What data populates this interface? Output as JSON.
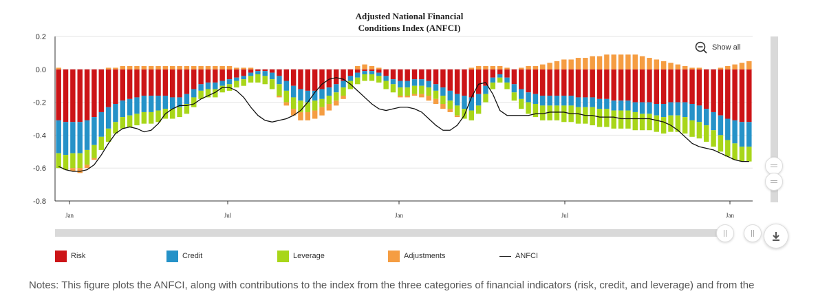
{
  "chart_data": {
    "type": "bar",
    "title": "Adjusted National Financial",
    "subtitle": "Conditions Index (ANFCI)",
    "ylim": [
      -0.8,
      0.2
    ],
    "yticks": [
      "0.2",
      "0.0",
      "-0.2",
      "-0.4",
      "-0.6",
      "-0.8"
    ],
    "xticks": [
      "Jan",
      "Jul",
      "Jan",
      "Jul",
      "Jan"
    ],
    "stacked": true,
    "grid": true,
    "series": [
      {
        "name": "Risk",
        "color": "#cc1417",
        "values": [
          -0.31,
          -0.32,
          -0.32,
          -0.32,
          -0.31,
          -0.29,
          -0.26,
          -0.23,
          -0.21,
          -0.19,
          -0.18,
          -0.17,
          -0.16,
          -0.16,
          -0.16,
          -0.16,
          -0.17,
          -0.17,
          -0.15,
          -0.12,
          -0.09,
          -0.08,
          -0.08,
          -0.07,
          -0.06,
          -0.05,
          -0.04,
          -0.02,
          -0.01,
          -0.01,
          -0.02,
          -0.04,
          -0.07,
          -0.1,
          -0.12,
          -0.13,
          -0.13,
          -0.12,
          -0.11,
          -0.09,
          -0.07,
          -0.04,
          -0.02,
          -0.01,
          -0.01,
          -0.02,
          -0.04,
          -0.06,
          -0.07,
          -0.07,
          -0.06,
          -0.06,
          -0.07,
          -0.09,
          -0.11,
          -0.13,
          -0.15,
          -0.16,
          -0.17,
          -0.15,
          -0.1,
          -0.05,
          -0.03,
          -0.05,
          -0.09,
          -0.12,
          -0.14,
          -0.15,
          -0.16,
          -0.16,
          -0.16,
          -0.16,
          -0.16,
          -0.17,
          -0.17,
          -0.17,
          -0.18,
          -0.18,
          -0.19,
          -0.19,
          -0.19,
          -0.2,
          -0.2,
          -0.2,
          -0.21,
          -0.21,
          -0.2,
          -0.2,
          -0.2,
          -0.21,
          -0.22,
          -0.24,
          -0.26,
          -0.28,
          -0.3,
          -0.31,
          -0.32,
          -0.32
        ]
      },
      {
        "name": "Credit",
        "color": "#2592c8",
        "values": [
          -0.2,
          -0.2,
          -0.19,
          -0.19,
          -0.18,
          -0.17,
          -0.15,
          -0.13,
          -0.11,
          -0.1,
          -0.1,
          -0.1,
          -0.1,
          -0.1,
          -0.09,
          -0.08,
          -0.07,
          -0.06,
          -0.06,
          -0.05,
          -0.04,
          -0.04,
          -0.04,
          -0.03,
          -0.03,
          -0.02,
          -0.02,
          -0.02,
          -0.02,
          -0.03,
          -0.04,
          -0.05,
          -0.06,
          -0.07,
          -0.07,
          -0.07,
          -0.06,
          -0.06,
          -0.05,
          -0.05,
          -0.04,
          -0.03,
          -0.03,
          -0.02,
          -0.02,
          -0.02,
          -0.03,
          -0.03,
          -0.04,
          -0.04,
          -0.04,
          -0.04,
          -0.04,
          -0.04,
          -0.05,
          -0.06,
          -0.07,
          -0.08,
          -0.08,
          -0.07,
          -0.05,
          -0.03,
          -0.02,
          -0.03,
          -0.05,
          -0.06,
          -0.06,
          -0.06,
          -0.06,
          -0.06,
          -0.06,
          -0.06,
          -0.06,
          -0.06,
          -0.06,
          -0.06,
          -0.06,
          -0.06,
          -0.06,
          -0.06,
          -0.06,
          -0.06,
          -0.07,
          -0.07,
          -0.07,
          -0.08,
          -0.08,
          -0.08,
          -0.09,
          -0.1,
          -0.1,
          -0.1,
          -0.11,
          -0.12,
          -0.13,
          -0.14,
          -0.15,
          -0.15
        ]
      },
      {
        "name": "Leverage",
        "color": "#a8d619",
        "values": [
          -0.09,
          -0.09,
          -0.09,
          -0.09,
          -0.09,
          -0.08,
          -0.08,
          -0.08,
          -0.07,
          -0.07,
          -0.07,
          -0.07,
          -0.07,
          -0.07,
          -0.07,
          -0.06,
          -0.06,
          -0.06,
          -0.06,
          -0.06,
          -0.05,
          -0.05,
          -0.05,
          -0.04,
          -0.04,
          -0.04,
          -0.04,
          -0.04,
          -0.05,
          -0.05,
          -0.06,
          -0.07,
          -0.07,
          -0.07,
          -0.07,
          -0.06,
          -0.06,
          -0.05,
          -0.05,
          -0.05,
          -0.05,
          -0.05,
          -0.04,
          -0.04,
          -0.04,
          -0.04,
          -0.05,
          -0.05,
          -0.05,
          -0.05,
          -0.05,
          -0.05,
          -0.05,
          -0.05,
          -0.05,
          -0.05,
          -0.06,
          -0.06,
          -0.06,
          -0.05,
          -0.05,
          -0.04,
          -0.03,
          -0.04,
          -0.05,
          -0.06,
          -0.07,
          -0.08,
          -0.09,
          -0.09,
          -0.09,
          -0.1,
          -0.1,
          -0.1,
          -0.1,
          -0.11,
          -0.11,
          -0.11,
          -0.11,
          -0.11,
          -0.11,
          -0.11,
          -0.1,
          -0.1,
          -0.1,
          -0.1,
          -0.1,
          -0.1,
          -0.1,
          -0.1,
          -0.1,
          -0.1,
          -0.1,
          -0.1,
          -0.1,
          -0.1,
          -0.09,
          -0.09
        ]
      },
      {
        "name": "Adjustments",
        "color": "#f59d42",
        "values": [
          0.01,
          0.0,
          -0.02,
          -0.03,
          -0.02,
          -0.01,
          0.0,
          0.01,
          0.01,
          0.02,
          0.02,
          0.02,
          0.02,
          0.02,
          0.02,
          0.02,
          0.02,
          0.02,
          0.02,
          0.02,
          0.02,
          0.02,
          0.02,
          0.02,
          0.02,
          0.01,
          0.01,
          0.01,
          0.0,
          0.0,
          0.0,
          -0.01,
          -0.02,
          -0.04,
          -0.05,
          -0.05,
          -0.05,
          -0.05,
          -0.04,
          -0.03,
          -0.02,
          0.0,
          0.02,
          0.03,
          0.02,
          0.01,
          0.0,
          0.0,
          -0.01,
          -0.01,
          -0.01,
          -0.02,
          -0.03,
          -0.03,
          -0.03,
          -0.02,
          -0.01,
          0.0,
          0.01,
          0.02,
          0.02,
          0.02,
          0.02,
          0.01,
          0.0,
          0.01,
          0.02,
          0.02,
          0.03,
          0.04,
          0.05,
          0.06,
          0.06,
          0.07,
          0.07,
          0.08,
          0.08,
          0.09,
          0.09,
          0.09,
          0.09,
          0.09,
          0.08,
          0.07,
          0.06,
          0.05,
          0.04,
          0.03,
          0.02,
          0.01,
          0.01,
          0.0,
          0.0,
          0.01,
          0.02,
          0.03,
          0.04,
          0.05
        ]
      },
      {
        "name": "ANFCI",
        "color": "#111111",
        "type": "line",
        "values": [
          -0.59,
          -0.61,
          -0.62,
          -0.62,
          -0.61,
          -0.58,
          -0.52,
          -0.45,
          -0.39,
          -0.36,
          -0.35,
          -0.36,
          -0.38,
          -0.37,
          -0.33,
          -0.27,
          -0.24,
          -0.22,
          -0.22,
          -0.21,
          -0.18,
          -0.16,
          -0.14,
          -0.11,
          -0.11,
          -0.13,
          -0.17,
          -0.23,
          -0.28,
          -0.31,
          -0.32,
          -0.31,
          -0.3,
          -0.28,
          -0.25,
          -0.2,
          -0.14,
          -0.09,
          -0.06,
          -0.05,
          -0.06,
          -0.09,
          -0.13,
          -0.17,
          -0.21,
          -0.24,
          -0.25,
          -0.24,
          -0.23,
          -0.23,
          -0.24,
          -0.26,
          -0.3,
          -0.34,
          -0.37,
          -0.37,
          -0.34,
          -0.28,
          -0.17,
          -0.09,
          -0.08,
          -0.15,
          -0.25,
          -0.28,
          -0.28,
          -0.28,
          -0.28,
          -0.27,
          -0.27,
          -0.26,
          -0.26,
          -0.26,
          -0.27,
          -0.27,
          -0.28,
          -0.28,
          -0.29,
          -0.29,
          -0.29,
          -0.3,
          -0.3,
          -0.3,
          -0.3,
          -0.3,
          -0.31,
          -0.32,
          -0.34,
          -0.37,
          -0.41,
          -0.45,
          -0.47,
          -0.48,
          -0.49,
          -0.51,
          -0.53,
          -0.55,
          -0.56,
          -0.56
        ]
      }
    ]
  },
  "controls": {
    "show_all": "Show all",
    "zoom_icon": "zoom-out-icon",
    "download_icon": "download-icon"
  },
  "legend": [
    {
      "label": "Risk",
      "color": "#cc1417",
      "kind": "box"
    },
    {
      "label": "Credit",
      "color": "#2592c8",
      "kind": "box"
    },
    {
      "label": "Leverage",
      "color": "#a8d619",
      "kind": "box"
    },
    {
      "label": "Adjustments",
      "color": "#f59d42",
      "kind": "box"
    },
    {
      "label": "ANFCI",
      "color": "#111111",
      "kind": "line"
    }
  ],
  "notes": "Notes: This figure plots the ANFCI, along with contributions to the index from the three categories of financial indicators (risk, credit, and leverage) and from the"
}
